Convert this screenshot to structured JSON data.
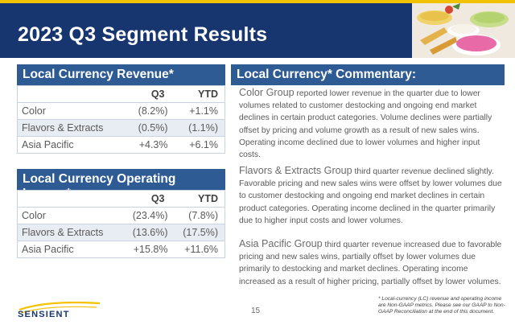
{
  "title": "2023 Q3 Segment Results",
  "revenue_table": {
    "title": "Local Currency Revenue*",
    "columns": [
      "Q3",
      "YTD"
    ],
    "rows": [
      {
        "label": "Color",
        "q3": "(8.2%)",
        "ytd": "+1.1%"
      },
      {
        "label": "Flavors & Extracts",
        "q3": "(0.5%)",
        "ytd": "(1.1%)"
      },
      {
        "label": "Asia Pacific",
        "q3": "+4.3%",
        "ytd": "+6.1%"
      }
    ]
  },
  "income_table": {
    "title": "Local Currency Operating Income*",
    "columns": [
      "Q3",
      "YTD"
    ],
    "rows": [
      {
        "label": "Color",
        "q3": "(23.4%)",
        "ytd": "(7.8%)"
      },
      {
        "label": "Flavors & Extracts",
        "q3": "(13.6%)",
        "ytd": "(17.5%)"
      },
      {
        "label": "Asia Pacific",
        "q3": "+15.8%",
        "ytd": "+11.6%"
      }
    ]
  },
  "commentary": {
    "title": "Local Currency* Commentary:",
    "paragraphs": [
      {
        "lead": "Color Group",
        "text": " reported lower revenue in the quarter due to lower volumes related to customer destocking and ongoing end market declines in certain product categories.  Volume declines were partially offset by pricing and volume growth as a result of new sales wins.  Operating income declined due to lower volumes and higher input costs."
      },
      {
        "lead": "Flavors & Extracts Group",
        "text": " third quarter revenue declined slightly.  Favorable pricing and new sales wins were offset by lower volumes due to customer destocking and ongoing end market declines in certain product categories. Operating income declined in the quarter primarily due to higher input costs and lower volumes."
      },
      {
        "lead": "Asia Pacific Group",
        "text": " third quarter revenue increased due to favorable pricing and new sales wins, partially offset by lower volumes due primarily to destocking and market declines.  Operating income increased as a result of higher pricing, partially offset by lower volumes."
      }
    ]
  },
  "footer": {
    "logo": "SENSIENT",
    "page_number": "15",
    "footnote": "* Local-currency (LC) revenue and operating income are Non-GAAP metrics. Please see our GAAP to Non-GAAP Reconciliation at the end of this document."
  },
  "colors": {
    "header_bg": "#17356e",
    "panel_title_bg": "#2e5b93",
    "accent_gold": "#f2c200",
    "row_stripe": "#e8edf3"
  }
}
